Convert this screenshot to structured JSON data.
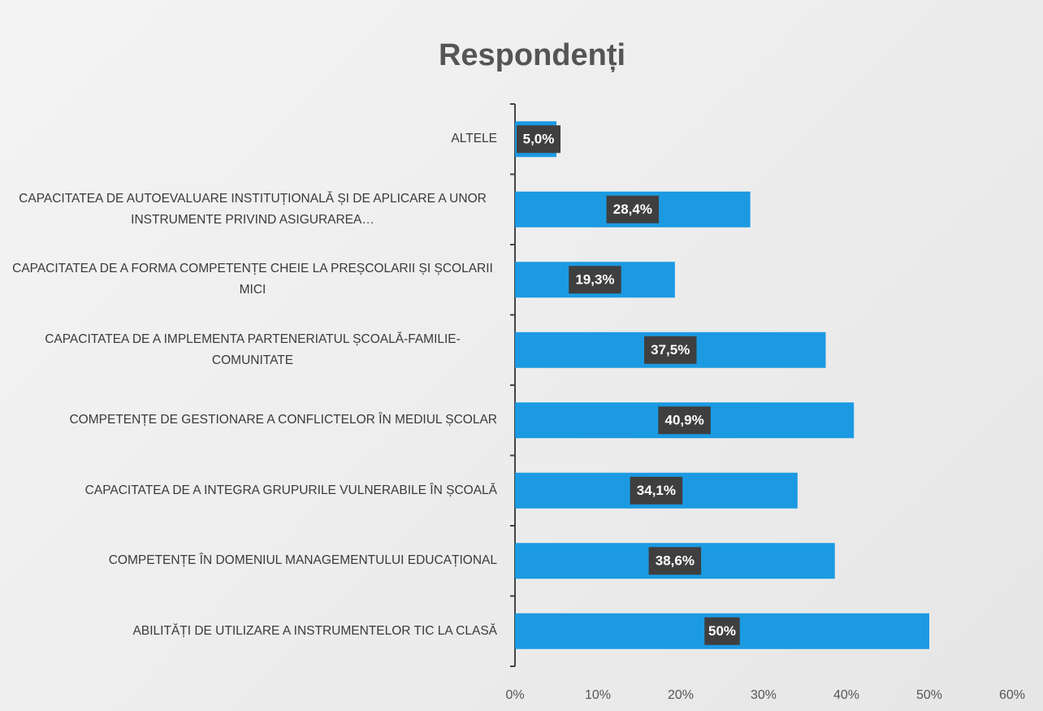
{
  "chart_data": {
    "type": "barh",
    "title": "Respondenți",
    "categories": [
      "ALTELE",
      "CAPACITATEA DE AUTOEVALUARE INSTITUȚIONALĂ ȘI DE APLICARE A UNOR INSTRUMENTE PRIVIND ASIGURAREA…",
      "CAPACITATEA DE A FORMA COMPETENȚE CHEIE LA PREȘCOLARII ȘI ȘCOLARII MICI",
      "CAPACITATEA DE A IMPLEMENTA PARTENERIATUL ȘCOALĂ-FAMILIE-COMUNITATE",
      "COMPETENȚE DE GESTIONARE A CONFLICTELOR ÎN MEDIUL ȘCOLAR",
      "CAPACITATEA DE A INTEGRA GRUPURILE VULNERABILE ÎN ȘCOALĂ",
      "COMPETENȚE ÎN DOMENIUL MANAGEMENTULUI EDUCAȚIONAL",
      "ABILITĂȚI DE UTILIZARE A INSTRUMENTELOR TIC LA CLASĂ"
    ],
    "values": [
      5.0,
      28.4,
      19.3,
      37.5,
      40.9,
      34.1,
      38.6,
      50
    ],
    "value_labels": [
      "5,0%",
      "28,4%",
      "19,3%",
      "37,5%",
      "40,9%",
      "34,1%",
      "38,6%",
      "50%"
    ],
    "color": "#1b9ae2",
    "xlim": [
      0,
      60
    ],
    "xticks": [
      {
        "value": 0,
        "label": "0%"
      },
      {
        "value": 10,
        "label": "10%"
      },
      {
        "value": 20,
        "label": "20%"
      },
      {
        "value": 30,
        "label": "30%"
      },
      {
        "value": 40,
        "label": "40%"
      },
      {
        "value": 50,
        "label": "50%"
      },
      {
        "value": 60,
        "label": "60%"
      }
    ],
    "grid": false
  }
}
